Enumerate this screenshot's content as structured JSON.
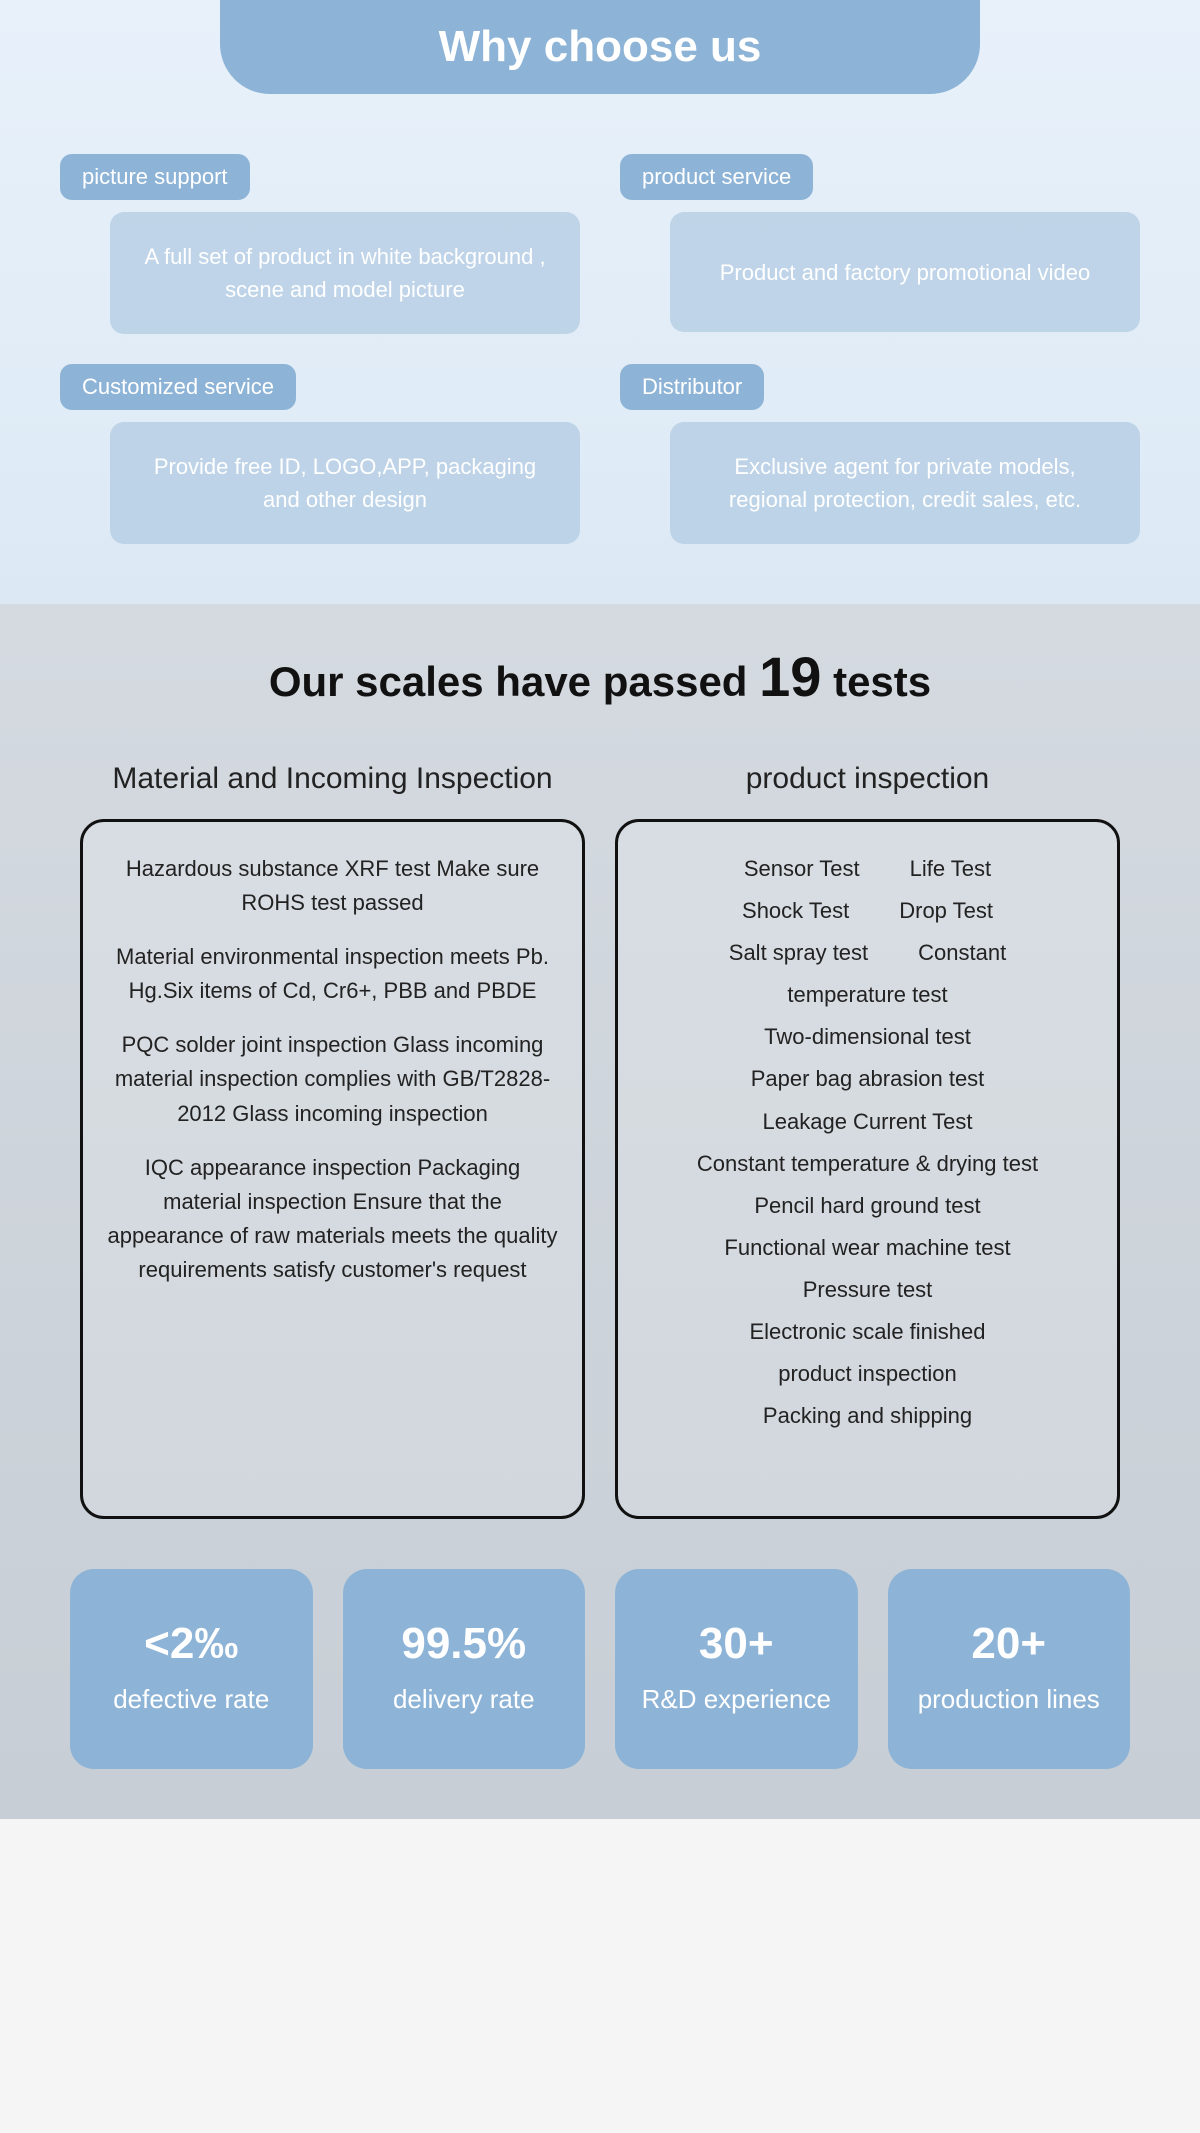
{
  "colors": {
    "accent": "#8db3d6",
    "section1_bg_top": "#e8f1fa",
    "section1_bg_bottom": "#dce9f5",
    "section2_bg_top": "#d4dae0",
    "section2_bg_bottom": "#c7ced5",
    "text_dark": "#111111",
    "white": "#ffffff"
  },
  "section1": {
    "title": "Why choose us",
    "features": [
      {
        "tag": "picture support",
        "body": "A full set of product in white background , scene and model picture"
      },
      {
        "tag": "product service",
        "body": "Product and factory promotional video"
      },
      {
        "tag": "Customized service",
        "body": "Provide free ID, LOGO,APP, packaging and other design"
      },
      {
        "tag": "Distributor",
        "body": "Exclusive agent for private models, regional protection, credit sales, etc."
      }
    ]
  },
  "section2": {
    "title_pre": "Our scales have passed ",
    "title_num": "19",
    "title_post": " tests",
    "col1": {
      "heading": "Material and Incoming Inspection",
      "paras": [
        "Hazardous substance XRF test Make sure ROHS test passed",
        "Material environmental inspection meets Pb. Hg.Six items of Cd, Cr6+, PBB and PBDE",
        "PQC solder joint inspection Glass incoming material inspection complies with GB/T2828-2012 Glass incoming inspection",
        "IQC appearance inspection Packaging material inspection Ensure that the appearance of raw materials meets the quality requirements satisfy customer's request"
      ]
    },
    "col2": {
      "heading": "product inspection",
      "pairs": [
        [
          "Sensor Test",
          "Life Test"
        ],
        [
          "Shock Test",
          "Drop Test"
        ],
        [
          "Salt spray test",
          "Constant"
        ]
      ],
      "lines": [
        "temperature test",
        "Two-dimensional test",
        "Paper bag abrasion test",
        "Leakage Current Test",
        "Constant temperature & drying test",
        "Pencil hard ground test",
        "Functional wear machine test",
        "Pressure test",
        "Electronic scale finished",
        "product inspection",
        "Packing and shipping"
      ]
    },
    "stats": [
      {
        "value": "<2‰",
        "label": "defective rate"
      },
      {
        "value": "99.5%",
        "label": "delivery rate"
      },
      {
        "value": "30+",
        "label": "R&D experience"
      },
      {
        "value": "20+",
        "label": "production lines"
      }
    ]
  }
}
